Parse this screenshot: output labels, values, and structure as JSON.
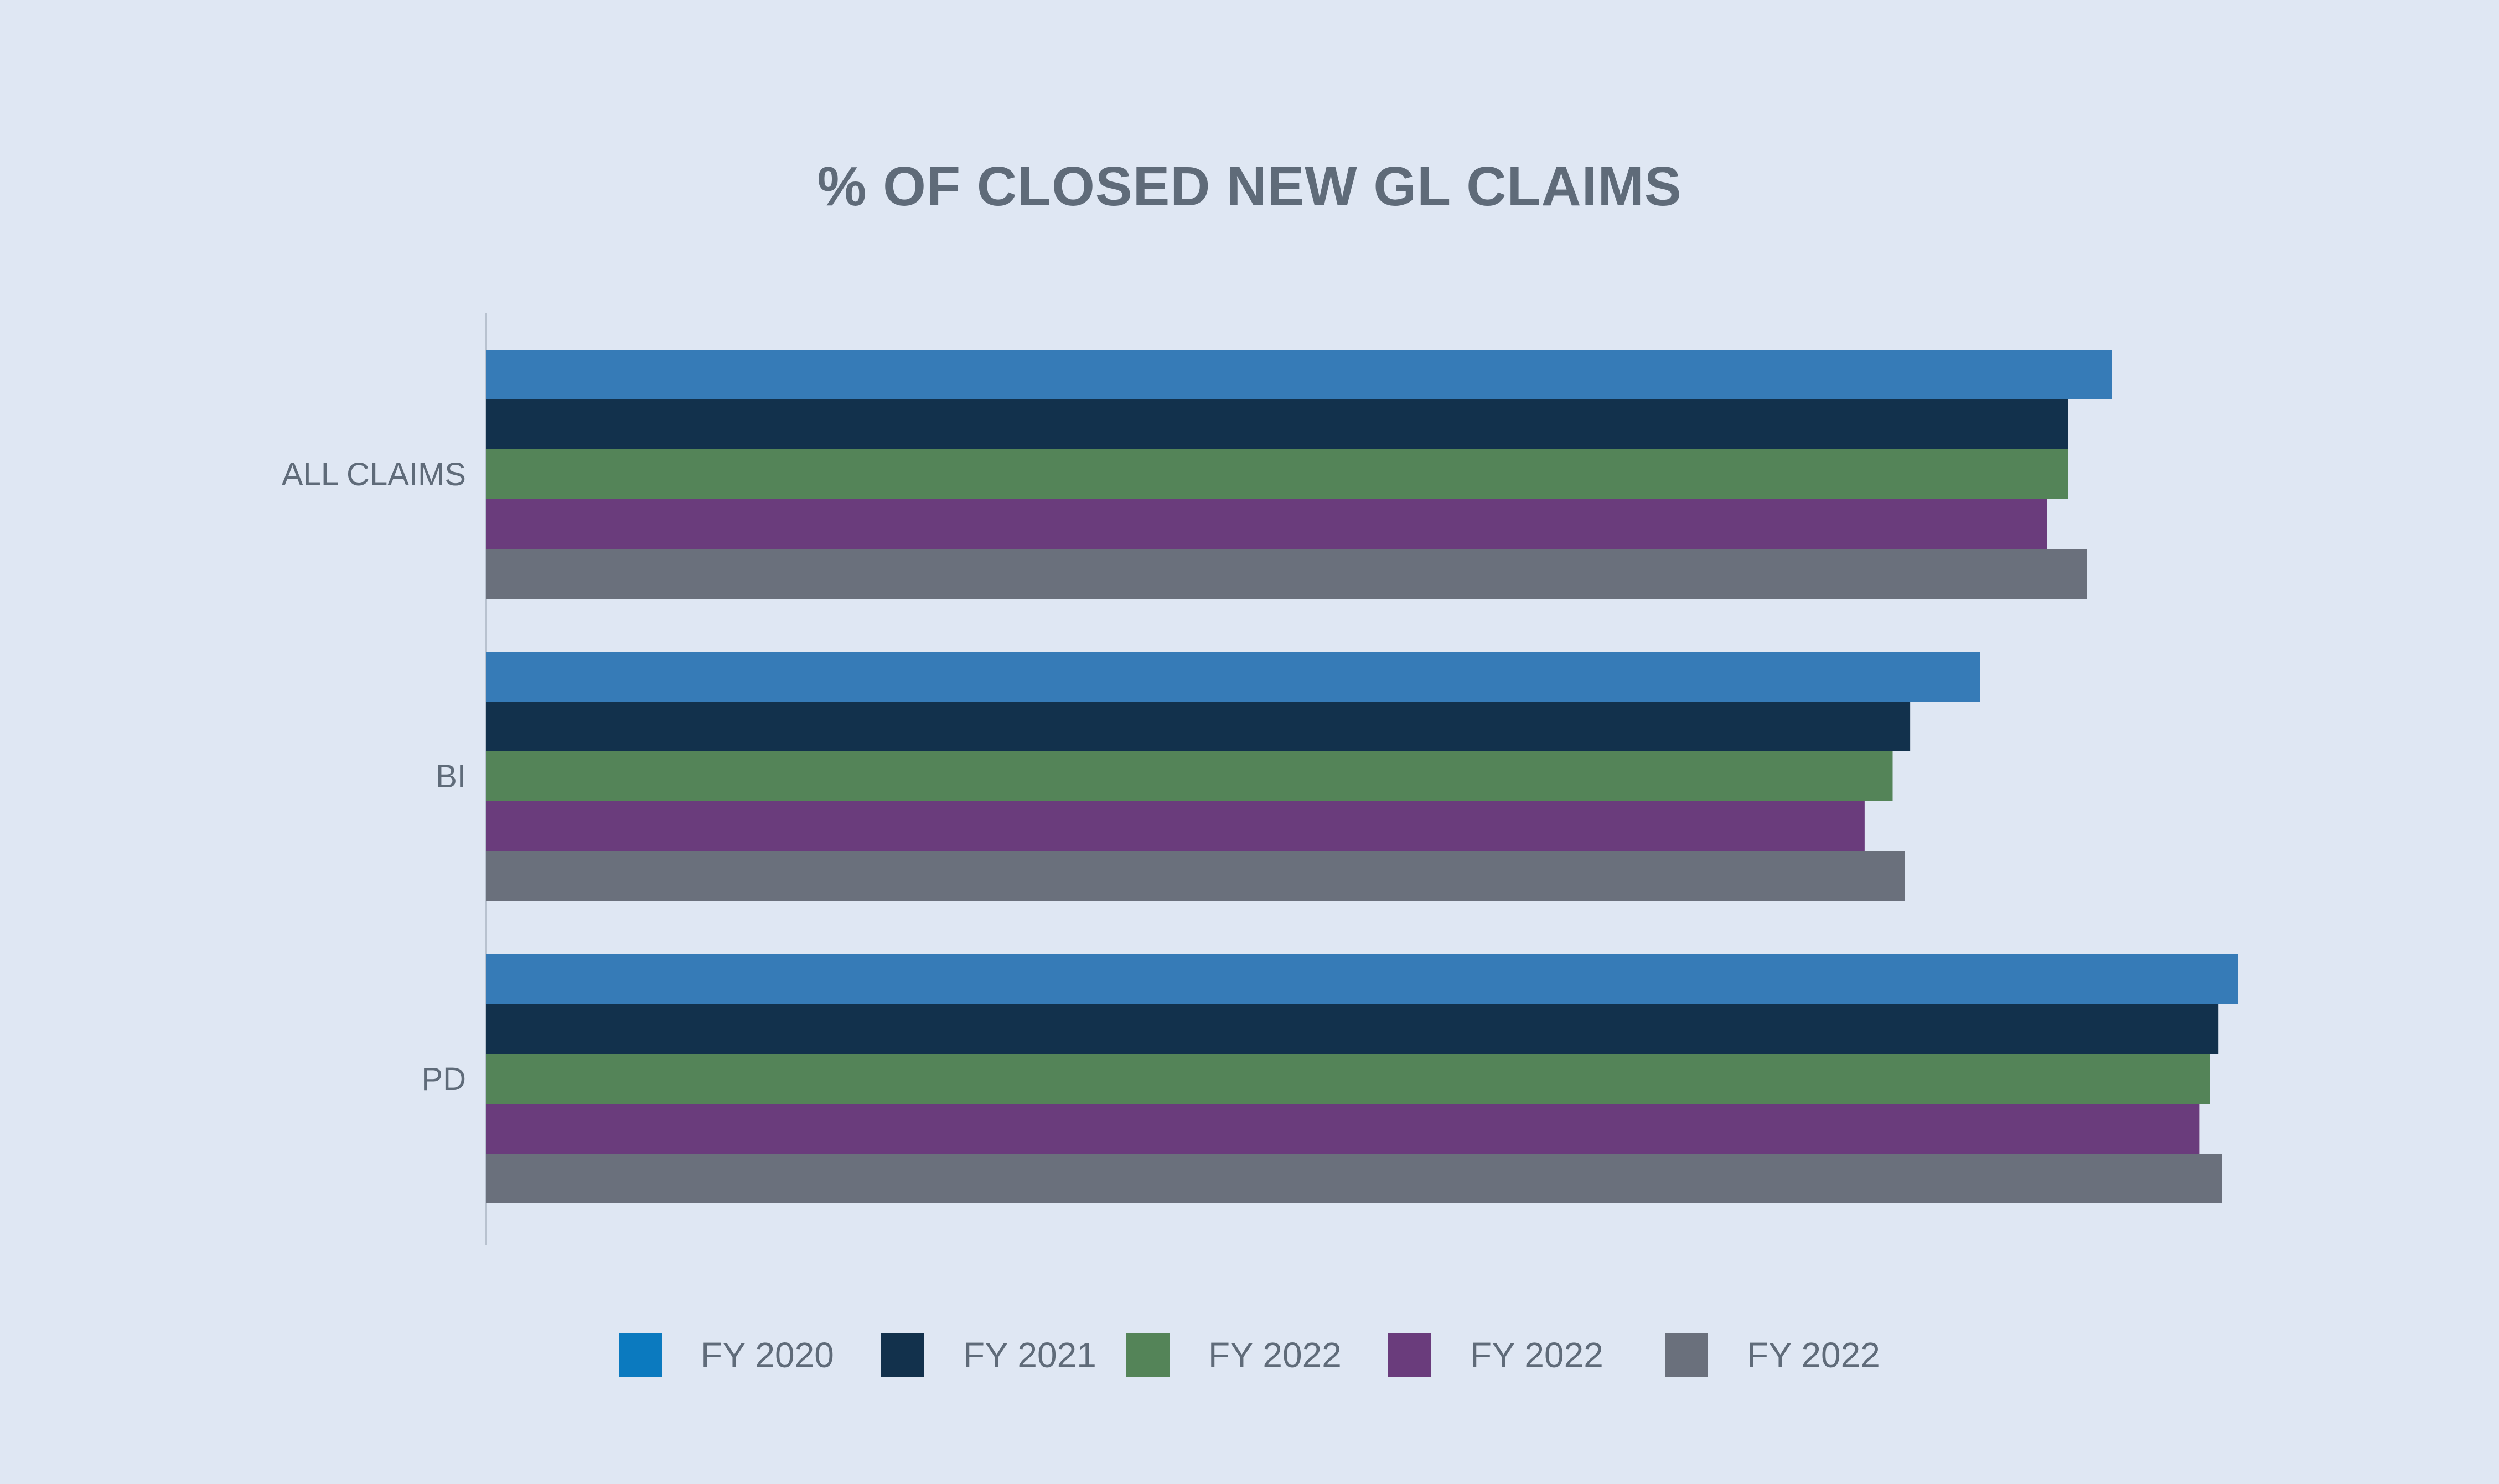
{
  "chart_data": {
    "type": "bar",
    "orientation": "horizontal",
    "title": "% OF CLOSED NEW GL CLAIMS",
    "xlabel": "",
    "ylabel": "",
    "categories": [
      "ALL CLAIMS",
      "BI",
      "PD"
    ],
    "series": [
      {
        "name": "FY 2020",
        "color": "#367bb7",
        "legend_color": "#0b7abf",
        "values": [
          92.8,
          85.3,
          100.0
        ]
      },
      {
        "name": "FY 2021",
        "color": "#12314c",
        "legend_color": "#12314c",
        "values": [
          90.3,
          81.3,
          98.9
        ]
      },
      {
        "name": "FY 2022",
        "color": "#548458",
        "legend_color": "#548458",
        "values": [
          90.3,
          80.3,
          98.4
        ]
      },
      {
        "name": "FY 2022",
        "color": "#6a3c7c",
        "legend_color": "#6a3c7c",
        "values": [
          89.1,
          78.7,
          97.8
        ]
      },
      {
        "name": "FY 2022",
        "color": "#6a707c",
        "legend_color": "#6a707c",
        "values": [
          91.4,
          81.0,
          99.1
        ]
      }
    ],
    "xlim": [
      0,
      100
    ],
    "grid": false,
    "legend_position": "bottom"
  }
}
